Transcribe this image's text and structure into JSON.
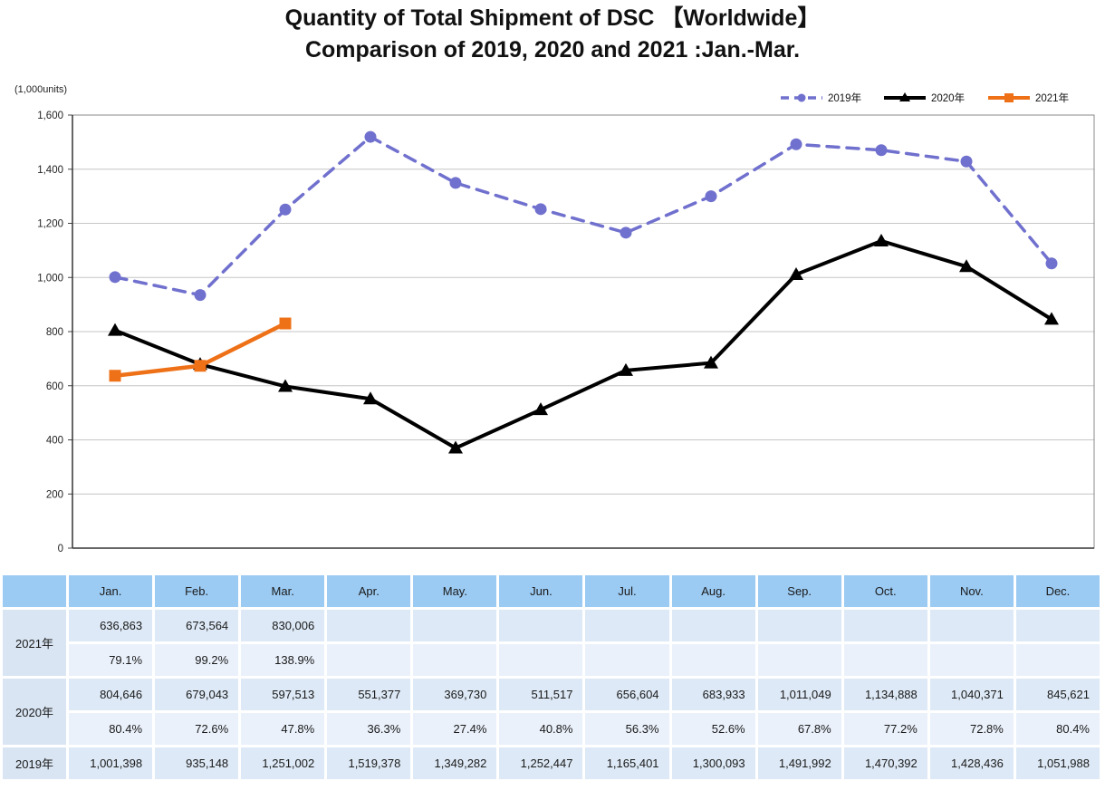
{
  "title": {
    "line1": "Quantity of Total Shipment of DSC 【Worldwide】",
    "line2": "Comparison of 2019, 2020 and 2021 :Jan.-Mar."
  },
  "chart_data": {
    "type": "line",
    "title": "Quantity of Total Shipment of DSC 【Worldwide】 Comparison of 2019, 2020 and 2021 :Jan.-Mar.",
    "unit_label": "(1,000units)",
    "categories": [
      "Jan.",
      "Feb.",
      "Mar.",
      "Apr.",
      "May.",
      "Jun.",
      "Jul.",
      "Aug.",
      "Sep.",
      "Oct.",
      "Nov.",
      "Dec."
    ],
    "ylim": [
      0,
      1600
    ],
    "ytick_step": 200,
    "ytick_labels": [
      "0",
      "200",
      "400",
      "600",
      "800",
      "1,000",
      "1,200",
      "1,400",
      "1,600"
    ],
    "grid": true,
    "legend_position": "top-right",
    "series": [
      {
        "name": "2019年",
        "color": "#7070ce",
        "style": "dashed",
        "marker": "circle",
        "values": [
          1001.398,
          935.148,
          1251.002,
          1519.378,
          1349.282,
          1252.447,
          1165.401,
          1300.093,
          1491.992,
          1470.392,
          1428.436,
          1051.988
        ]
      },
      {
        "name": "2020年",
        "color": "#000000",
        "style": "solid",
        "marker": "triangle",
        "values": [
          804.646,
          679.043,
          597.513,
          551.377,
          369.73,
          511.517,
          656.604,
          683.933,
          1011.049,
          1134.888,
          1040.371,
          845.621
        ]
      },
      {
        "name": "2021年",
        "color": "#ee7118",
        "style": "solid",
        "marker": "square",
        "values": [
          636.863,
          673.564,
          830.006
        ]
      }
    ]
  },
  "table": {
    "columns": [
      "Jan.",
      "Feb.",
      "Mar.",
      "Apr.",
      "May.",
      "Jun.",
      "Jul.",
      "Aug.",
      "Sep.",
      "Oct.",
      "Nov.",
      "Dec."
    ],
    "rows": [
      {
        "label": "2021年",
        "units": [
          "636,863",
          "673,564",
          "830,006",
          "",
          "",
          "",
          "",
          "",
          "",
          "",
          "",
          ""
        ],
        "percents": [
          "79.1%",
          "99.2%",
          "138.9%",
          "",
          "",
          "",
          "",
          "",
          "",
          "",
          "",
          ""
        ]
      },
      {
        "label": "2020年",
        "units": [
          "804,646",
          "679,043",
          "597,513",
          "551,377",
          "369,730",
          "511,517",
          "656,604",
          "683,933",
          "1,011,049",
          "1,134,888",
          "1,040,371",
          "845,621"
        ],
        "percents": [
          "80.4%",
          "72.6%",
          "47.8%",
          "36.3%",
          "27.4%",
          "40.8%",
          "56.3%",
          "52.6%",
          "67.8%",
          "77.2%",
          "72.8%",
          "80.4%"
        ]
      },
      {
        "label": "2019年",
        "units": [
          "1,001,398",
          "935,148",
          "1,251,002",
          "1,519,378",
          "1,349,282",
          "1,252,447",
          "1,165,401",
          "1,300,093",
          "1,491,992",
          "1,470,392",
          "1,428,436",
          "1,051,988"
        ],
        "percents": null
      }
    ]
  }
}
